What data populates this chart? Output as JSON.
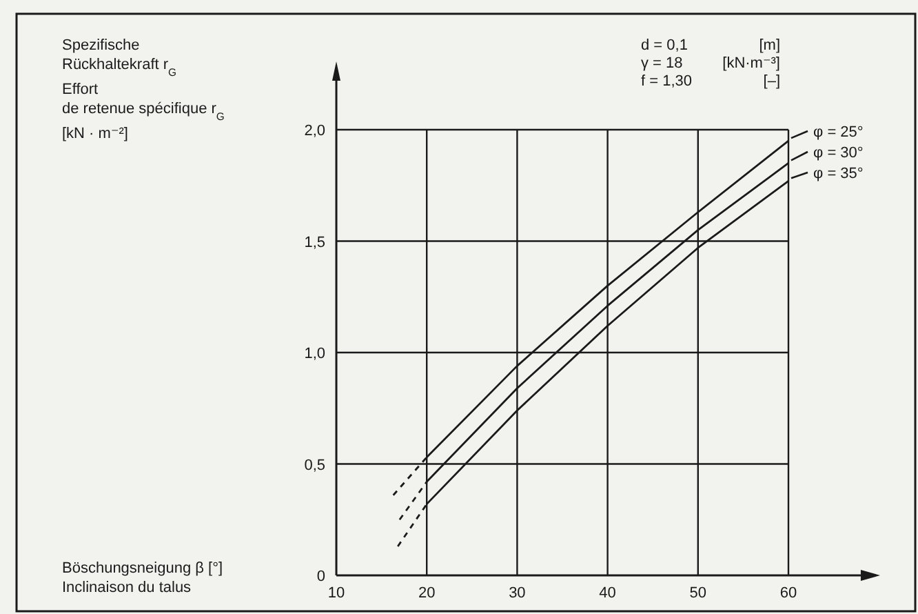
{
  "chart_data": {
    "type": "line",
    "ylabel": "Spezifische\nRückhaltekraft r$_{G}$\nEffort\nde retenue spécifique r$_{G}$\n[kN · m⁻²]",
    "annotations": [
      "d = 0,1\t[m]",
      "γ = 18\t[kN·m⁻³]",
      "f = 1,30\t[–]",
      "Böschungsneigung β [°]",
      "Inclinaison du talus"
    ],
    "x": [
      20,
      30,
      40,
      50,
      60
    ],
    "series": [
      {
        "name": "φ = 25°",
        "color": "#1a1a1a",
        "values": [
          0.53,
          0.94,
          1.3,
          1.63,
          1.95
        ]
      },
      {
        "name": "φ = 30°",
        "color": "#1a1a1a",
        "values": [
          0.42,
          0.84,
          1.21,
          1.55,
          1.85
        ]
      },
      {
        "name": "φ = 35°",
        "color": "#1a1a1a",
        "values": [
          0.32,
          0.74,
          1.12,
          1.47,
          1.77
        ]
      },
      {
        "color": "#1a1a1a",
        "line_style": "dashed",
        "x": [
          16.3,
          20
        ],
        "values": [
          0.36,
          0.53
        ]
      },
      {
        "color": "#1a1a1a",
        "line_style": "dashed",
        "x": [
          17,
          20
        ],
        "values": [
          0.25,
          0.42
        ]
      },
      {
        "color": "#1a1a1a",
        "line_style": "dashed",
        "x": [
          16.8,
          20
        ],
        "values": [
          0.13,
          0.32
        ]
      }
    ],
    "xlim": [
      10,
      68
    ],
    "xticks": [
      10,
      20,
      30,
      40,
      50,
      60
    ],
    "ylim": [
      0,
      2.22
    ],
    "yticks": [
      0,
      {
        "value": 0.5,
        "label": "0,5"
      },
      {
        "value": 1,
        "label": "1,0"
      },
      {
        "value": 1.5,
        "label": "1,5"
      },
      {
        "value": 2,
        "label": "2,0"
      }
    ],
    "grid": true,
    "legend": "right",
    "line_style": "solid"
  }
}
